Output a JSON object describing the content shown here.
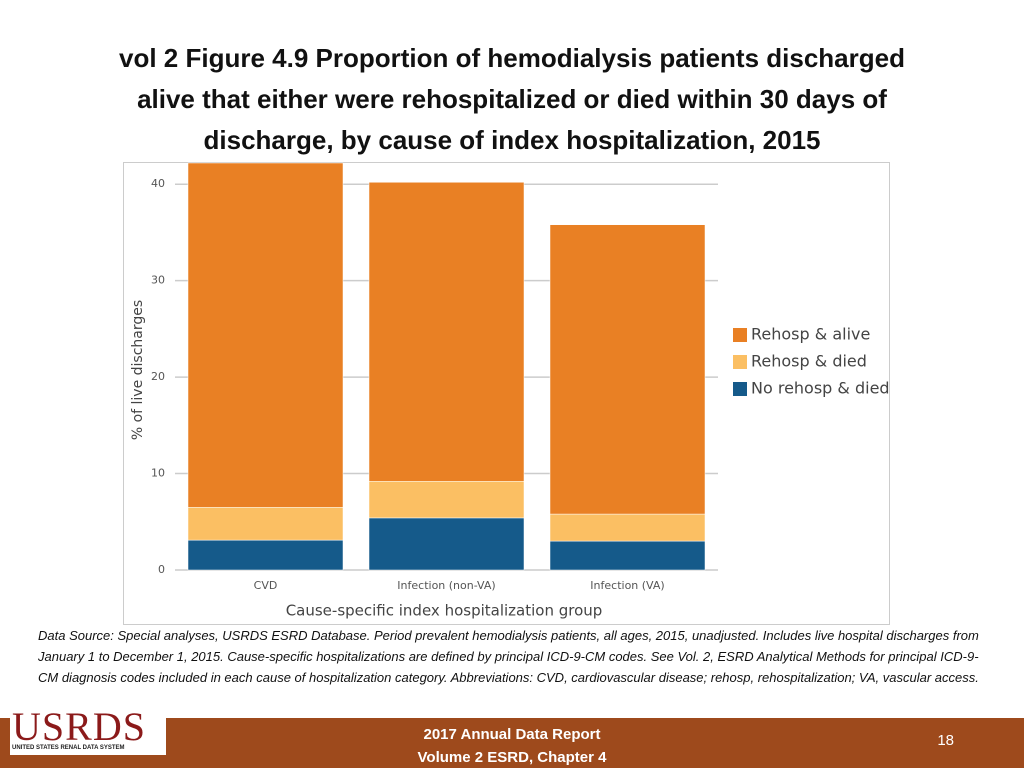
{
  "title_lines": [
    "vol 2 Figure 4.9 Proportion of hemodialysis patients discharged",
    "alive that either were rehospitalized or died within 30 days of",
    "discharge, by cause of index hospitalization, 2015"
  ],
  "chart_data": {
    "type": "stacked_bar",
    "x_label": "Cause-specific index hospitalization group",
    "y_label": "% of live discharges",
    "categories": [
      "CVD",
      "Infection (non-VA)",
      "Infection (VA)"
    ],
    "series": [
      {
        "name": "No rehosp & died",
        "color": "#155a8a",
        "values": [
          3.1,
          5.4,
          3.0
        ]
      },
      {
        "name": "Rehosp & died",
        "color": "#fbbf63",
        "values": [
          3.4,
          3.8,
          2.8
        ]
      },
      {
        "name": "Rehosp & alive",
        "color": "#e98024",
        "values": [
          35.7,
          31.0,
          30.0
        ]
      }
    ],
    "ylim": [
      0,
      42.2
    ],
    "yticks": [
      0,
      10,
      20,
      30,
      40
    ],
    "grid": true,
    "legend": "right"
  },
  "footnote": "Data Source: Special analyses, USRDS ESRD Database. Period prevalent hemodialysis patients, all ages, 2015, unadjusted. Includes live hospital discharges from January 1 to December 1, 2015. Cause-specific hospitalizations are defined by principal ICD-9-CM codes. See Vol. 2, ESRD Analytical Methods for principal ICD-9-CM diagnosis codes included in each cause of hospitalization category. Abbreviations: CVD, cardiovascular disease; rehosp, rehospitalization; VA, vascular access.",
  "logo": {
    "name": "USRDS",
    "subtitle": "UNITED STATES RENAL DATA SYSTEM"
  },
  "footer": {
    "lines": [
      "2017 Annual Data Report",
      "Volume 2 ESRD, Chapter 4"
    ],
    "page": "18"
  }
}
